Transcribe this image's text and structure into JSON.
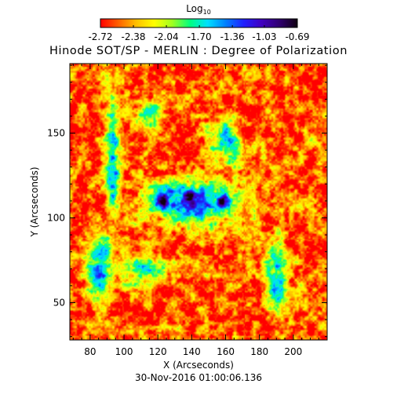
{
  "chart_data": {
    "type": "heatmap",
    "title": "Hinode SOT/SP - MERLIN : Degree of Polarization",
    "subtitle": "30-Nov-2016 01:00:06.136",
    "xlabel": "X (Arcseconds)",
    "ylabel": "Y (Arcseconds)",
    "xlim": [
      68,
      220
    ],
    "ylim": [
      28,
      191
    ],
    "x_ticks": [
      "80",
      "100",
      "120",
      "140",
      "160",
      "180",
      "200"
    ],
    "x_tick_values": [
      80,
      100,
      120,
      140,
      160,
      180,
      200
    ],
    "y_ticks": [
      "50",
      "100",
      "150"
    ],
    "y_tick_values": [
      50,
      100,
      150
    ],
    "colorbar": {
      "label_base": "Log",
      "label_sub": "10",
      "ticks": [
        "-2.72",
        "-2.38",
        "-2.04",
        "-1.70",
        "-1.36",
        "-1.03",
        "-0.69"
      ],
      "tick_values": [
        -2.72,
        -2.38,
        -2.04,
        -1.7,
        -1.36,
        -1.03,
        -0.69
      ],
      "range": [
        -2.72,
        -0.69
      ],
      "colormap": [
        "#ff0000",
        "#ff6000",
        "#ffc000",
        "#ffff00",
        "#a0ff20",
        "#00ff80",
        "#00e0ff",
        "#0080ff",
        "#2020ff",
        "#4000c0",
        "#300070",
        "#100010"
      ]
    },
    "field": {
      "background_value": -2.55,
      "features": [
        {
          "name": "sunspot-umbra",
          "x": 123,
          "y": 110,
          "rx": 7,
          "ry": 7,
          "peak": -0.7
        },
        {
          "name": "sunspot-umbra",
          "x": 138,
          "y": 113,
          "rx": 7,
          "ry": 7,
          "peak": -0.72
        },
        {
          "name": "sunspot-umbra",
          "x": 158,
          "y": 110,
          "rx": 8,
          "ry": 7,
          "peak": -0.75
        },
        {
          "name": "sunspot-penumbra",
          "x": 141,
          "y": 110,
          "rx": 34,
          "ry": 16,
          "peak": -1.2
        },
        {
          "name": "network-lane",
          "x": 93,
          "y": 135,
          "rx": 6,
          "ry": 45,
          "peak": -1.5
        },
        {
          "name": "network-lane",
          "x": 86,
          "y": 70,
          "rx": 10,
          "ry": 25,
          "peak": -1.5
        },
        {
          "name": "network-lane",
          "x": 112,
          "y": 70,
          "rx": 18,
          "ry": 10,
          "peak": -1.6
        },
        {
          "name": "network-lane",
          "x": 190,
          "y": 65,
          "rx": 8,
          "ry": 25,
          "peak": -1.55
        },
        {
          "name": "network-lane",
          "x": 160,
          "y": 145,
          "rx": 10,
          "ry": 18,
          "peak": -1.7
        },
        {
          "name": "network-lane",
          "x": 115,
          "y": 160,
          "rx": 10,
          "ry": 12,
          "peak": -1.75
        }
      ]
    }
  }
}
